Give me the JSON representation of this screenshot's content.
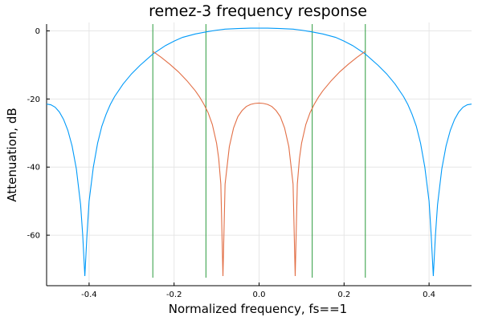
{
  "chart_data": {
    "type": "line",
    "title": "remez-3 frequency response",
    "xlabel": "Normalized frequency, fs==1",
    "ylabel": "Attenuation, dB",
    "xlim": [
      -0.5,
      0.5
    ],
    "ylim": [
      -72,
      2
    ],
    "x_ticks": [
      -0.4,
      -0.2,
      0.0,
      0.2,
      0.4
    ],
    "x_tick_labels": [
      "-0.4",
      "-0.2",
      "0.0",
      "0.2",
      "0.4"
    ],
    "y_ticks": [
      0,
      -20,
      -40,
      -60
    ],
    "y_tick_labels": [
      "0",
      "-20",
      "-40",
      "-60"
    ],
    "grid": true,
    "legend": "none",
    "series": [
      {
        "color": "#009af9",
        "x": [
          -0.5,
          -0.49,
          -0.48,
          -0.47,
          -0.46,
          -0.45,
          -0.44,
          -0.43,
          -0.42,
          -0.415,
          -0.41,
          -0.405,
          -0.4,
          -0.39,
          -0.38,
          -0.37,
          -0.36,
          -0.35,
          -0.34,
          -0.32,
          -0.3,
          -0.28,
          -0.25,
          -0.22,
          -0.2,
          -0.18,
          -0.15,
          -0.12,
          -0.1,
          -0.08,
          -0.05,
          -0.02,
          0.0,
          0.02,
          0.05,
          0.08,
          0.1,
          0.12,
          0.15,
          0.18,
          0.2,
          0.22,
          0.25,
          0.28,
          0.3,
          0.32,
          0.34,
          0.35,
          0.36,
          0.37,
          0.38,
          0.39,
          0.4,
          0.405,
          0.41,
          0.415,
          0.42,
          0.43,
          0.44,
          0.45,
          0.46,
          0.47,
          0.48,
          0.49,
          0.5
        ],
        "y": [
          -21.5,
          -21.7,
          -22.4,
          -23.8,
          -26.0,
          -29.2,
          -33.8,
          -40.5,
          -51.0,
          -60.0,
          -72.0,
          -60.0,
          -50.0,
          -40.0,
          -33.0,
          -28.0,
          -24.5,
          -21.6,
          -19.3,
          -15.6,
          -12.6,
          -10.1,
          -6.8,
          -4.3,
          -3.0,
          -1.9,
          -0.9,
          -0.2,
          0.2,
          0.5,
          0.7,
          0.8,
          0.8,
          0.8,
          0.7,
          0.5,
          0.2,
          -0.2,
          -0.9,
          -1.9,
          -3.0,
          -4.3,
          -6.8,
          -10.1,
          -12.6,
          -15.6,
          -19.3,
          -21.6,
          -24.5,
          -28.0,
          -33.0,
          -40.0,
          -50.0,
          -60.0,
          -72.0,
          -60.0,
          -51.0,
          -40.5,
          -33.8,
          -29.2,
          -26.0,
          -23.8,
          -22.4,
          -21.7,
          -21.5
        ]
      },
      {
        "color": "#e26f46",
        "x": [
          -0.25,
          -0.23,
          -0.21,
          -0.19,
          -0.17,
          -0.15,
          -0.14,
          -0.13,
          -0.12,
          -0.11,
          -0.1,
          -0.095,
          -0.09,
          -0.085,
          -0.08,
          -0.07,
          -0.06,
          -0.05,
          -0.04,
          -0.03,
          -0.02,
          -0.01,
          0.0,
          0.01,
          0.02,
          0.03,
          0.04,
          0.05,
          0.06,
          0.07,
          0.08,
          0.085,
          0.09,
          0.095,
          0.1,
          0.11,
          0.12,
          0.13,
          0.14,
          0.15,
          0.17,
          0.19,
          0.21,
          0.23,
          0.25
        ],
        "y": [
          -6.0,
          -7.8,
          -9.8,
          -12.0,
          -14.6,
          -17.6,
          -19.4,
          -21.5,
          -24.0,
          -27.5,
          -33.0,
          -37.5,
          -45.0,
          -72.0,
          -45.0,
          -34.0,
          -28.5,
          -25.2,
          -23.4,
          -22.2,
          -21.6,
          -21.3,
          -21.2,
          -21.3,
          -21.6,
          -22.2,
          -23.4,
          -25.2,
          -28.5,
          -34.0,
          -45.0,
          -72.0,
          -45.0,
          -37.5,
          -33.0,
          -27.5,
          -24.0,
          -21.5,
          -19.4,
          -17.6,
          -14.6,
          -12.0,
          -9.8,
          -7.8,
          -6.0
        ]
      }
    ],
    "vertical_lines": {
      "color": "#3ea44e",
      "x": [
        -0.25,
        -0.125,
        0.125,
        0.25
      ]
    }
  }
}
